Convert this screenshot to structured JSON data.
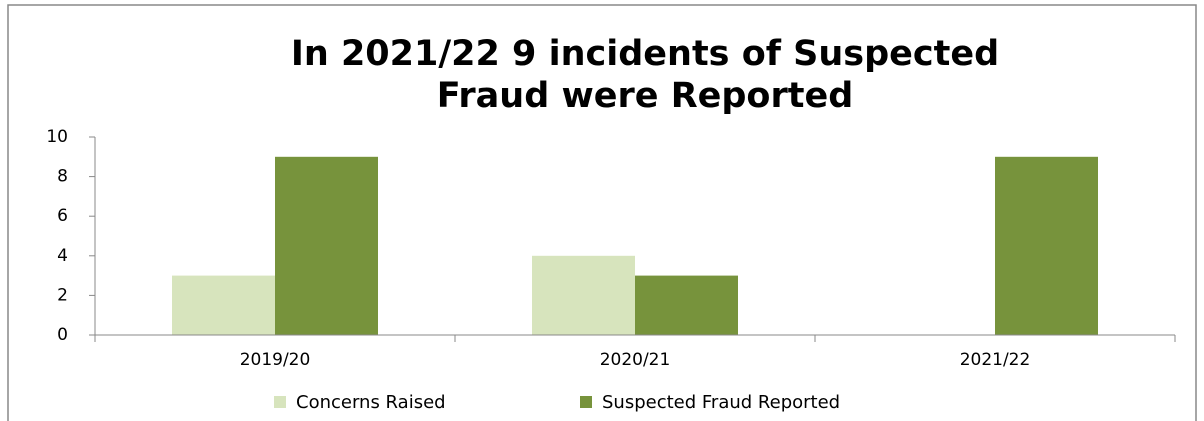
{
  "chart_data": {
    "type": "bar",
    "title": [
      "In 2021/22 9 incidents of Suspected",
      "Fraud were Reported"
    ],
    "categories": [
      "2019/20",
      "2020/21",
      "2021/22"
    ],
    "series": [
      {
        "name": "Concerns Raised",
        "color": "#d7e4bd",
        "values": [
          3,
          4,
          0
        ]
      },
      {
        "name": "Suspected Fraud Reported",
        "color": "#77933c",
        "values": [
          9,
          3,
          9
        ]
      }
    ],
    "ylim": [
      0,
      10
    ],
    "yticks": [
      0,
      2,
      4,
      6,
      8,
      10
    ],
    "grid": false,
    "legend": "bottom"
  }
}
